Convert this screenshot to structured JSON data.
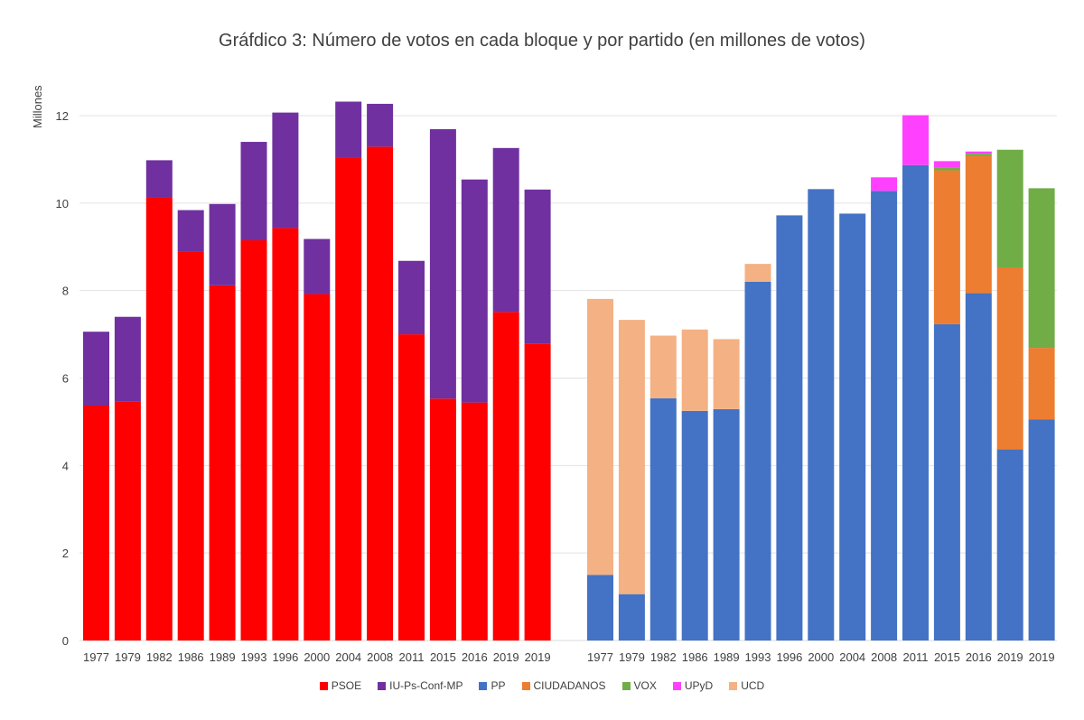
{
  "chart_data": {
    "type": "bar",
    "stacked": true,
    "title": "Gráfdico 3: Número de votos en cada bloque y por partido (en millones de votos)",
    "ylabel": "Millones",
    "ylim": [
      0,
      12
    ],
    "yticks": [
      0,
      2,
      4,
      6,
      8,
      10,
      12
    ],
    "grid": true,
    "legend_position": "bottom",
    "legend": [
      {
        "name": "PSOE",
        "color": "#ff0000"
      },
      {
        "name": "IU-Ps-Conf-MP",
        "color": "#7030a0"
      },
      {
        "name": "PP",
        "color": "#4472c4"
      },
      {
        "name": "CIUDADANOS",
        "color": "#ed7d31"
      },
      {
        "name": "VOX",
        "color": "#70ad47"
      },
      {
        "name": "UPyD",
        "color": "#ff40ff"
      },
      {
        "name": "UCD",
        "color": "#f4b183"
      }
    ],
    "groups": [
      {
        "categories": [
          "1977",
          "1979",
          "1982",
          "1986",
          "1989",
          "1993",
          "1996",
          "2000",
          "2004",
          "2008",
          "2011",
          "2015",
          "2016",
          "2019",
          "2019"
        ],
        "series": [
          {
            "name": "PSOE",
            "color": "#ff0000",
            "values": [
              5.37,
              5.47,
              10.13,
              8.9,
              8.12,
              9.15,
              9.43,
              7.92,
              11.03,
              11.29,
              7.0,
              5.53,
              5.44,
              7.51,
              6.79
            ]
          },
          {
            "name": "IU-Ps-Conf-MP",
            "color": "#7030a0",
            "values": [
              1.69,
              1.93,
              0.85,
              0.94,
              1.86,
              2.25,
              2.64,
              1.26,
              1.29,
              0.98,
              1.68,
              6.16,
              5.1,
              3.75,
              3.52
            ]
          }
        ]
      },
      {
        "categories": [
          "1977",
          "1979",
          "1982",
          "1986",
          "1989",
          "1993",
          "1996",
          "2000",
          "2004",
          "2008",
          "2011",
          "2015",
          "2016",
          "2019",
          "2019"
        ],
        "series": [
          {
            "name": "PP",
            "color": "#4472c4",
            "values": [
              1.5,
              1.06,
              5.54,
              5.25,
              5.29,
              8.2,
              9.72,
              10.32,
              9.76,
              10.28,
              10.87,
              7.23,
              7.94,
              4.37,
              5.05
            ]
          },
          {
            "name": "CIUDADANOS",
            "color": "#ed7d31",
            "values": [
              0,
              0,
              0,
              0,
              0,
              0,
              0,
              0,
              0,
              0,
              0,
              3.52,
              3.14,
              4.16,
              1.64
            ]
          },
          {
            "name": "VOX",
            "color": "#70ad47",
            "values": [
              0,
              0,
              0,
              0,
              0,
              0,
              0,
              0,
              0,
              0,
              0,
              0.06,
              0.05,
              2.69,
              3.65
            ]
          },
          {
            "name": "UPyD",
            "color": "#ff40ff",
            "values": [
              0,
              0,
              0,
              0,
              0,
              0,
              0,
              0,
              0,
              0.31,
              1.14,
              0.15,
              0.05,
              0,
              0
            ]
          },
          {
            "name": "UCD",
            "color": "#f4b183",
            "values": [
              6.31,
              6.27,
              1.43,
              1.86,
              1.6,
              0.41,
              0,
              0,
              0,
              0,
              0,
              0,
              0,
              0,
              0
            ]
          }
        ]
      }
    ]
  }
}
